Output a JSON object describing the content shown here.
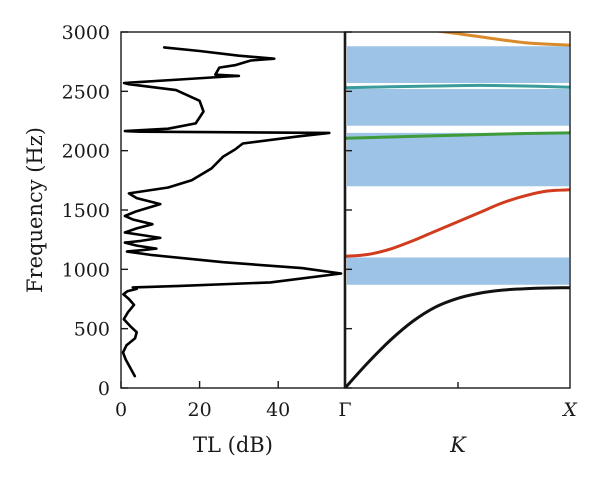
{
  "chart_data": [
    {
      "type": "line",
      "panel": "transmission-loss",
      "xlabel": "TL (dB)",
      "ylabel": "Frequency (Hz)",
      "xlim": [
        0,
        57
      ],
      "ylim": [
        0,
        3000
      ],
      "x_ticks": [
        "0",
        "20",
        "40"
      ],
      "y_ticks": [
        "0",
        "500",
        "1000",
        "1500",
        "2000",
        "2500",
        "3000"
      ],
      "grid": false,
      "series": [
        {
          "color": "#000000",
          "points": [
            [
              3.5,
              100
            ],
            [
              2.2,
              180
            ],
            [
              1.2,
              240
            ],
            [
              0.5,
              300
            ],
            [
              1.4,
              360
            ],
            [
              3.6,
              420
            ],
            [
              4.0,
              470
            ],
            [
              2.4,
              520
            ],
            [
              0.7,
              580
            ],
            [
              1.8,
              640
            ],
            [
              3.3,
              700
            ],
            [
              2.0,
              750
            ],
            [
              0.6,
              790
            ],
            [
              1.6,
              815
            ],
            [
              4.0,
              835
            ],
            [
              3.0,
              848
            ],
            [
              15.0,
              860
            ],
            [
              38.0,
              890
            ],
            [
              56.0,
              965
            ],
            [
              46.0,
              1010
            ],
            [
              26.0,
              1060
            ],
            [
              8.0,
              1120
            ],
            [
              1.5,
              1150
            ],
            [
              5.0,
              1160
            ],
            [
              9.0,
              1175
            ],
            [
              4.0,
              1200
            ],
            [
              1.0,
              1225
            ],
            [
              5.0,
              1240
            ],
            [
              10.0,
              1265
            ],
            [
              5.0,
              1290
            ],
            [
              1.0,
              1310
            ],
            [
              4.0,
              1345
            ],
            [
              8.0,
              1380
            ],
            [
              3.0,
              1420
            ],
            [
              1.0,
              1450
            ],
            [
              4.0,
              1490
            ],
            [
              10.0,
              1550
            ],
            [
              4.0,
              1600
            ],
            [
              2.0,
              1640
            ],
            [
              12.0,
              1690
            ],
            [
              18.0,
              1750
            ],
            [
              23.0,
              1850
            ],
            [
              26.0,
              1950
            ],
            [
              29.0,
              2010
            ],
            [
              31.0,
              2060
            ],
            [
              45.0,
              2120
            ],
            [
              53.0,
              2150
            ],
            [
              30.0,
              2155
            ],
            [
              5.0,
              2160
            ],
            [
              1.0,
              2165
            ],
            [
              12.0,
              2185
            ],
            [
              19.0,
              2230
            ],
            [
              21.0,
              2330
            ],
            [
              20.0,
              2420
            ],
            [
              14.0,
              2510
            ],
            [
              2.0,
              2560
            ],
            [
              0.8,
              2570
            ],
            [
              15.0,
              2600
            ],
            [
              27.0,
              2625
            ],
            [
              30.0,
              2630
            ],
            [
              24.0,
              2640
            ],
            [
              25.0,
              2700
            ],
            [
              29.0,
              2720
            ],
            [
              33.0,
              2760
            ],
            [
              39.0,
              2775
            ],
            [
              30.0,
              2800
            ],
            [
              20.0,
              2840
            ],
            [
              11.0,
              2870
            ]
          ]
        }
      ]
    },
    {
      "type": "line",
      "panel": "dispersion",
      "xlabel": "K",
      "ylabel": "",
      "x_ticks": [
        "Γ",
        "X"
      ],
      "xlim": [
        0,
        1
      ],
      "ylim": [
        0,
        3000
      ],
      "grid": false,
      "band_gaps": [
        {
          "from": 870,
          "to": 1100,
          "color": "#9dc3e6"
        },
        {
          "from": 1700,
          "to": 2150,
          "color": "#9dc3e6"
        },
        {
          "from": 2210,
          "to": 2520,
          "color": "#9dc3e6"
        },
        {
          "from": 2570,
          "to": 2880,
          "color": "#9dc3e6"
        }
      ],
      "series": [
        {
          "color": "#111111",
          "x": [
            0,
            0.1,
            0.2,
            0.3,
            0.4,
            0.5,
            0.6,
            0.7,
            0.8,
            0.9,
            1.0
          ],
          "y": [
            0,
            210,
            400,
            560,
            680,
            755,
            800,
            825,
            837,
            843,
            845
          ]
        },
        {
          "color": "#d23c1e",
          "x": [
            0,
            0.1,
            0.2,
            0.3,
            0.4,
            0.5,
            0.6,
            0.7,
            0.8,
            0.9,
            1.0
          ],
          "y": [
            1110,
            1125,
            1170,
            1240,
            1320,
            1400,
            1480,
            1560,
            1620,
            1660,
            1670
          ]
        },
        {
          "color": "#3f9a3a",
          "x": [
            0,
            0.2,
            0.4,
            0.6,
            0.8,
            1.0
          ],
          "y": [
            2105,
            2115,
            2125,
            2135,
            2145,
            2150
          ]
        },
        {
          "color": "#3a9b9b",
          "x": [
            0,
            0.2,
            0.4,
            0.6,
            0.8,
            1.0
          ],
          "y": [
            2530,
            2538,
            2545,
            2550,
            2545,
            2535
          ]
        },
        {
          "color": "#d98a2b",
          "x": [
            0,
            0.2,
            0.4,
            0.6,
            0.8,
            1.0
          ],
          "y": [
            3060,
            3040,
            3010,
            2960,
            2910,
            2890
          ]
        }
      ]
    }
  ]
}
